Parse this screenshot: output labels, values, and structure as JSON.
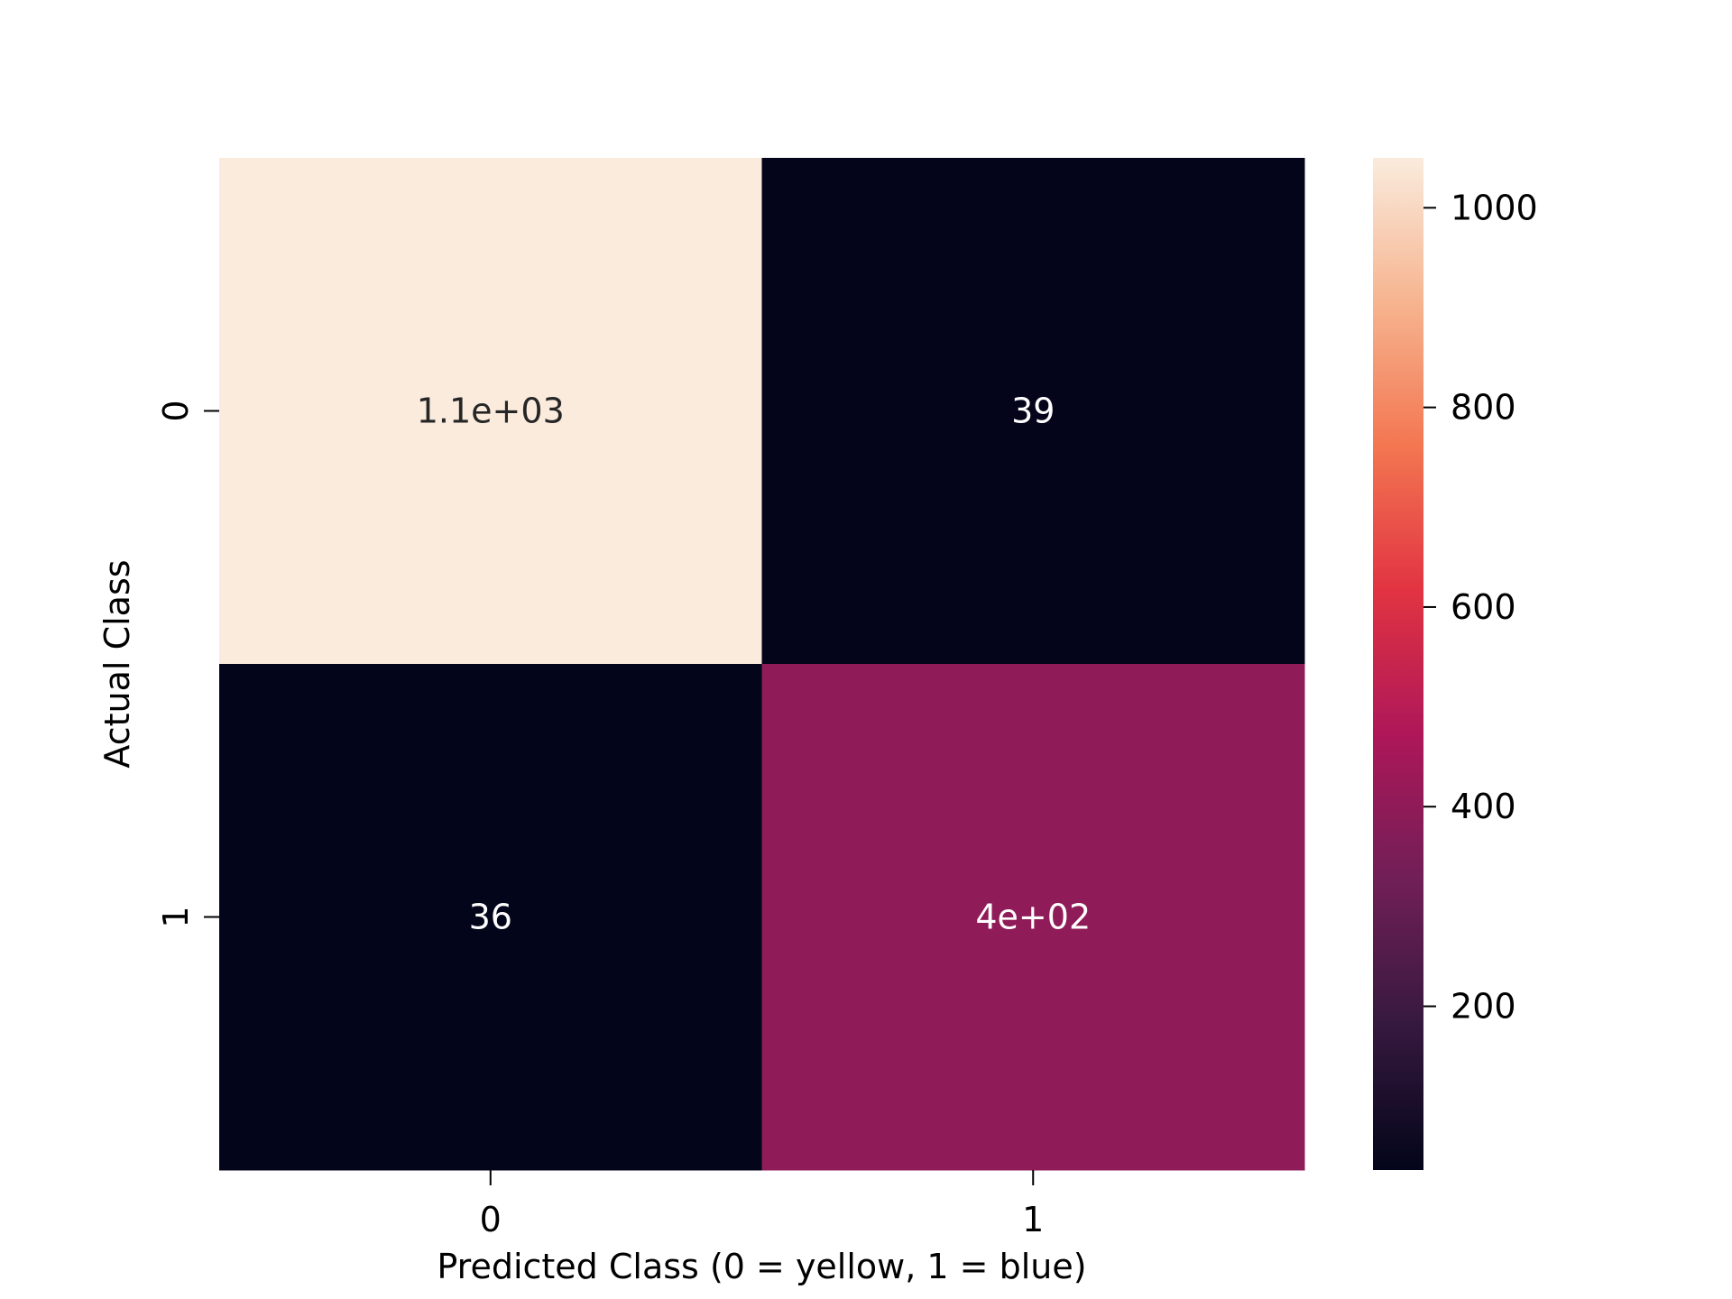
{
  "chart_data": {
    "type": "heatmap",
    "title": "",
    "xlabel": "Predicted Class (0 = yellow, 1 = blue)",
    "ylabel": "Actual Class",
    "x_categories": [
      "0",
      "1"
    ],
    "y_categories": [
      "0",
      "1"
    ],
    "values": [
      [
        1050,
        39
      ],
      [
        36,
        400
      ]
    ],
    "annotations": [
      [
        "1.1e+03",
        "39"
      ],
      [
        "36",
        "4e+02"
      ]
    ],
    "colorbar": {
      "range": [
        36,
        1050
      ],
      "ticks": [
        200,
        400,
        600,
        800,
        1000
      ],
      "tick_labels": [
        "200",
        "400",
        "600",
        "800",
        "1000"
      ],
      "colormap_stops": [
        "#03051a",
        "#36193e",
        "#701f57",
        "#ad1759",
        "#e13342",
        "#f37651",
        "#f6b48f",
        "#faebdd"
      ]
    },
    "annotation_colors": {
      "light_cell_text": "#262626",
      "dark_cell_text": "#ffffff"
    }
  }
}
